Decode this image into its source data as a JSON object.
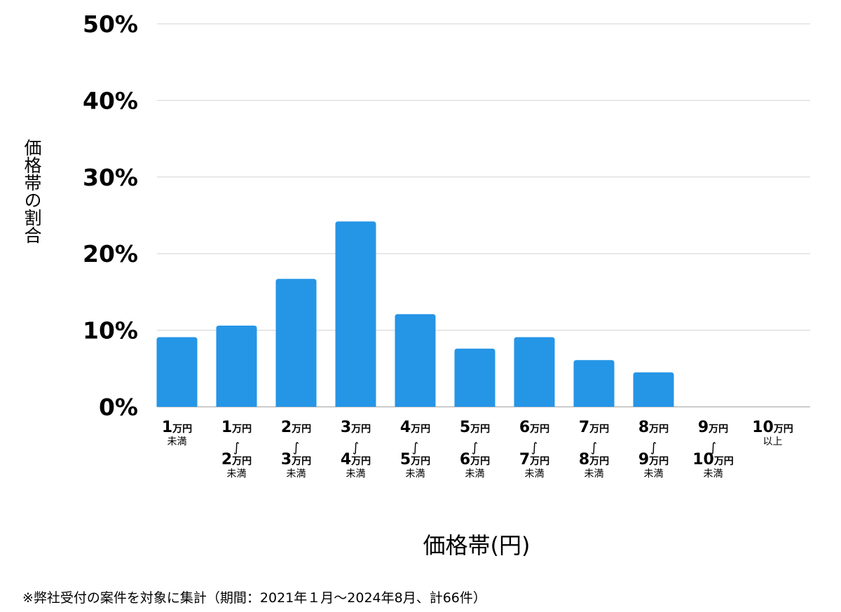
{
  "chart_data": {
    "type": "bar",
    "ylabel": "価格帯の割合",
    "xlabel": "価格帯(円)",
    "ylim": [
      0,
      50
    ],
    "yticks": [
      {
        "value": 0,
        "label": "0%"
      },
      {
        "value": 10,
        "label": "10%"
      },
      {
        "value": 20,
        "label": "20%"
      },
      {
        "value": 30,
        "label": "30%"
      },
      {
        "value": 40,
        "label": "40%"
      },
      {
        "value": 50,
        "label": "50%"
      }
    ],
    "grid": true,
    "color": "#2595e6",
    "categories": [
      {
        "lines": [
          {
            "num": "1",
            "unit": "万円"
          },
          {
            "small": "未満"
          }
        ]
      },
      {
        "lines": [
          {
            "num": "1",
            "unit": "万円"
          },
          {
            "tilde": "∫"
          },
          {
            "num": "2",
            "unit": "万円"
          },
          {
            "small": "未満"
          }
        ]
      },
      {
        "lines": [
          {
            "num": "2",
            "unit": "万円"
          },
          {
            "tilde": "∫"
          },
          {
            "num": "3",
            "unit": "万円"
          },
          {
            "small": "未満"
          }
        ]
      },
      {
        "lines": [
          {
            "num": "3",
            "unit": "万円"
          },
          {
            "tilde": "∫"
          },
          {
            "num": "4",
            "unit": "万円"
          },
          {
            "small": "未満"
          }
        ]
      },
      {
        "lines": [
          {
            "num": "4",
            "unit": "万円"
          },
          {
            "tilde": "∫"
          },
          {
            "num": "5",
            "unit": "万円"
          },
          {
            "small": "未満"
          }
        ]
      },
      {
        "lines": [
          {
            "num": "5",
            "unit": "万円"
          },
          {
            "tilde": "∫"
          },
          {
            "num": "6",
            "unit": "万円"
          },
          {
            "small": "未満"
          }
        ]
      },
      {
        "lines": [
          {
            "num": "6",
            "unit": "万円"
          },
          {
            "tilde": "∫"
          },
          {
            "num": "7",
            "unit": "万円"
          },
          {
            "small": "未満"
          }
        ]
      },
      {
        "lines": [
          {
            "num": "7",
            "unit": "万円"
          },
          {
            "tilde": "∫"
          },
          {
            "num": "8",
            "unit": "万円"
          },
          {
            "small": "未満"
          }
        ]
      },
      {
        "lines": [
          {
            "num": "8",
            "unit": "万円"
          },
          {
            "tilde": "∫"
          },
          {
            "num": "9",
            "unit": "万円"
          },
          {
            "small": "未満"
          }
        ]
      },
      {
        "lines": [
          {
            "num": "9",
            "unit": "万円"
          },
          {
            "tilde": "∫"
          },
          {
            "num": "10",
            "unit": "万円"
          },
          {
            "small": "未満"
          }
        ]
      },
      {
        "lines": [
          {
            "num": "10",
            "unit": "万円"
          },
          {
            "small": "以上"
          }
        ]
      }
    ],
    "values": [
      9.1,
      10.6,
      16.7,
      24.2,
      12.1,
      7.6,
      9.1,
      6.1,
      4.5,
      0,
      0
    ]
  },
  "footnote": "※弊社受付の案件を対象に集計（期間：2021年１月～2024年8月、計66件）"
}
